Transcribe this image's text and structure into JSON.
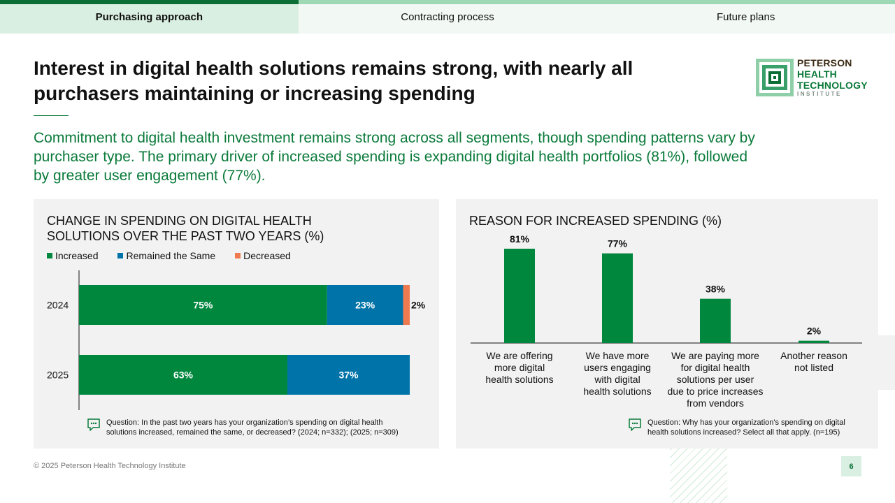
{
  "tabs": [
    {
      "label": "Purchasing approach",
      "active": true
    },
    {
      "label": "Contracting process",
      "active": false
    },
    {
      "label": "Future plans",
      "active": false
    }
  ],
  "title": "Interest in digital health solutions remains strong, with nearly all purchasers maintaining or increasing spending",
  "subtitle": "Commitment to digital health investment remains strong across all segments, though spending patterns vary by purchaser type. The primary driver of increased spending is expanding digital health portfolios (81%), followed by greater user engagement (77%).",
  "logo": {
    "line1": "PETERSON",
    "line2": "HEALTH",
    "line3": "TECHNOLOGY",
    "line4": "INSTITUTE"
  },
  "colors": {
    "increased": "#00873e",
    "same": "#0073a8",
    "decreased": "#ef7a50",
    "brand": "#0a7a3a"
  },
  "left_panel": {
    "title_line1": "CHANGE IN SPENDING ON DIGITAL HEALTH",
    "title_line2": "SOLUTIONS OVER THE PAST TWO YEARS (%)",
    "legend": [
      "Increased",
      "Remained the Same",
      "Decreased"
    ],
    "question_line1": "Question: In the past two years has your organization’s spending on digital health",
    "question_line2": "solutions increased, remained the same, or decreased? (2024; n=332); (2025; n=309)"
  },
  "right_panel": {
    "title": "REASON FOR INCREASED SPENDING (%)",
    "question_line1": "Question: Why has your organization's spending on digital",
    "question_line2": "health solutions increased? Select all that apply. (n=195)"
  },
  "chart_data": [
    {
      "type": "bar",
      "orientation": "horizontal",
      "stacked": true,
      "title": "CHANGE IN SPENDING ON DIGITAL HEALTH SOLUTIONS OVER THE PAST TWO YEARS (%)",
      "categories": [
        "2024",
        "2025"
      ],
      "series": [
        {
          "name": "Increased",
          "values": [
            75,
            63
          ],
          "labels": [
            "75%",
            "63%"
          ]
        },
        {
          "name": "Remained the Same",
          "values": [
            23,
            37
          ],
          "labels": [
            "23%",
            "37%"
          ]
        },
        {
          "name": "Decreased",
          "values": [
            2,
            0
          ],
          "labels": [
            "2%",
            ""
          ]
        }
      ],
      "xlim": [
        0,
        100
      ]
    },
    {
      "type": "bar",
      "orientation": "vertical",
      "title": "REASON FOR INCREASED SPENDING (%)",
      "categories": [
        [
          "We are offering",
          "more digital",
          "health solutions"
        ],
        [
          "We have more",
          "users engaging",
          "with digital",
          "health solutions"
        ],
        [
          "We are paying more",
          "for digital health",
          "solutions per user",
          "due to price increases",
          "from vendors"
        ],
        [
          "Another reason",
          "not listed"
        ]
      ],
      "values": [
        81,
        77,
        38,
        2
      ],
      "labels": [
        "81%",
        "77%",
        "38%",
        "2%"
      ],
      "ylim": [
        0,
        100
      ]
    }
  ],
  "footer": "© 2025 Peterson Health Technology Institute",
  "page_number": "6"
}
